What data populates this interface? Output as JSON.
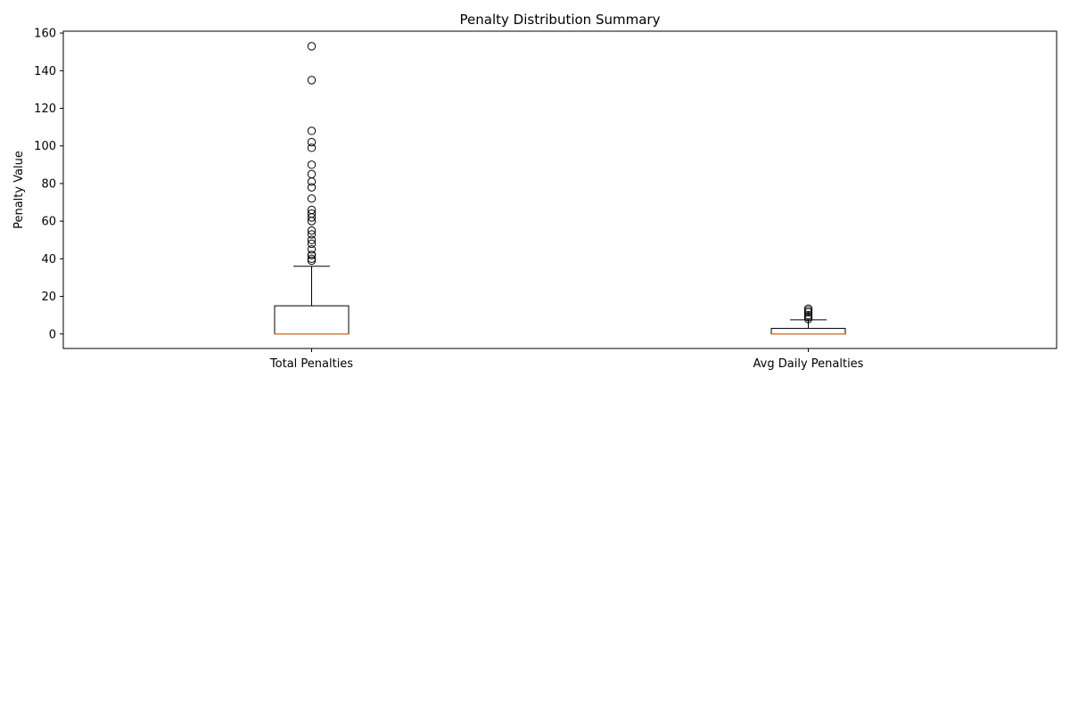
{
  "chart_data": {
    "type": "box",
    "title": "Penalty Distribution Summary",
    "xlabel": "",
    "ylabel": "Penalty Value",
    "ylim": [
      -7.7,
      161
    ],
    "yticks": [
      0,
      20,
      40,
      60,
      80,
      100,
      120,
      140,
      160
    ],
    "grid": false,
    "colors": {
      "box": "#000000",
      "median": "#e07b39",
      "outlier": "#000000"
    },
    "categories": [
      "Total Penalties",
      "Avg Daily Penalties"
    ],
    "boxes": [
      {
        "label": "Total Penalties",
        "whisker_low": 0,
        "q1": 0,
        "median": 0,
        "q3": 15,
        "whisker_high": 36,
        "outliers": [
          39,
          40,
          42,
          42,
          45,
          48,
          50,
          53,
          55,
          60,
          62,
          64,
          66,
          72,
          78,
          81,
          85,
          90,
          99,
          102,
          108,
          135,
          153
        ]
      },
      {
        "label": "Avg Daily Penalties",
        "whisker_low": 0,
        "q1": 0,
        "median": 0,
        "q3": 3,
        "whisker_high": 7.5,
        "outliers": [
          8,
          9,
          10,
          11.5,
          12.5,
          13.5
        ]
      }
    ]
  }
}
